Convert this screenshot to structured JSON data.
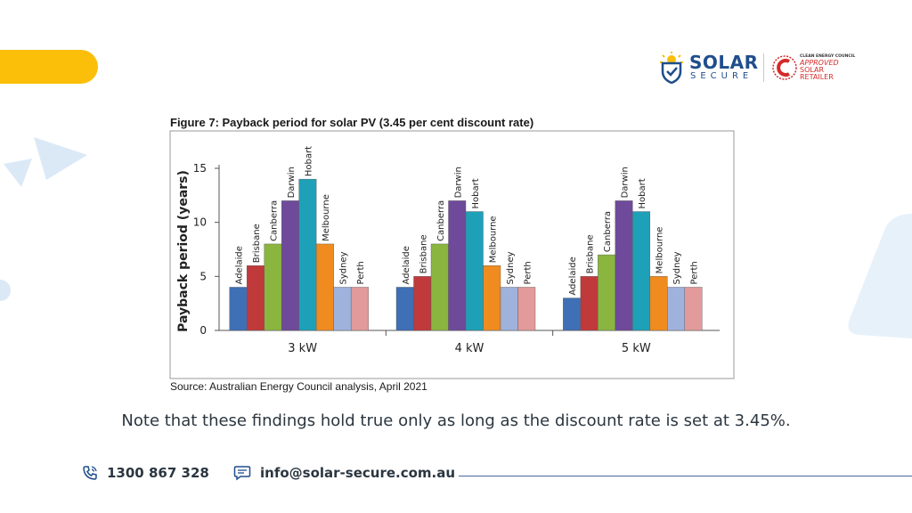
{
  "brand": {
    "name": "SOLAR",
    "tagline": "SECURE",
    "cec_org": "CLEAN ENERGY COUNCIL",
    "cec_badge": [
      "APPROVED",
      "SOLAR",
      "RETAILER"
    ],
    "primary_color": "#1f4e8c",
    "accent_color": "#fbbf0a",
    "badge_color": "#d42a2a"
  },
  "figure": {
    "title": "Figure 7: Payback period for solar PV (3.45 per cent discount rate)",
    "source": "Source: Australian Energy Council analysis, April 2021"
  },
  "chart_data": {
    "type": "bar",
    "title": "Figure 7: Payback period for solar PV (3.45 per cent discount rate)",
    "ylabel": "Payback period (years)",
    "xlabel": "",
    "ylim": [
      0,
      15
    ],
    "yticks": [
      0,
      5,
      10,
      15
    ],
    "grid": false,
    "legend": "none (series names shown as rotated labels above bars)",
    "categories": [
      "3 kW",
      "4 kW",
      "5 kW"
    ],
    "series": [
      {
        "name": "Adelaide",
        "color": "#3f6fb5",
        "values": [
          4,
          4,
          3
        ]
      },
      {
        "name": "Brisbane",
        "color": "#c0393b",
        "values": [
          6,
          5,
          5
        ]
      },
      {
        "name": "Canberra",
        "color": "#8ab53f",
        "values": [
          8,
          8,
          7
        ]
      },
      {
        "name": "Darwin",
        "color": "#6f4a9a",
        "values": [
          12,
          12,
          12
        ]
      },
      {
        "name": "Hobart",
        "color": "#1ea0b8",
        "values": [
          14,
          11,
          11
        ]
      },
      {
        "name": "Melbourne",
        "color": "#f08b1f",
        "values": [
          8,
          6,
          5
        ]
      },
      {
        "name": "Sydney",
        "color": "#9fb2dc",
        "values": [
          4,
          4,
          4
        ]
      },
      {
        "name": "Perth",
        "color": "#e29a9a",
        "values": [
          4,
          4,
          4
        ]
      }
    ]
  },
  "note": "Note that these findings hold true only as long as the discount rate is set at 3.45%.",
  "footer": {
    "phone": "1300 867 328",
    "email": "info@solar-secure.com.au"
  }
}
